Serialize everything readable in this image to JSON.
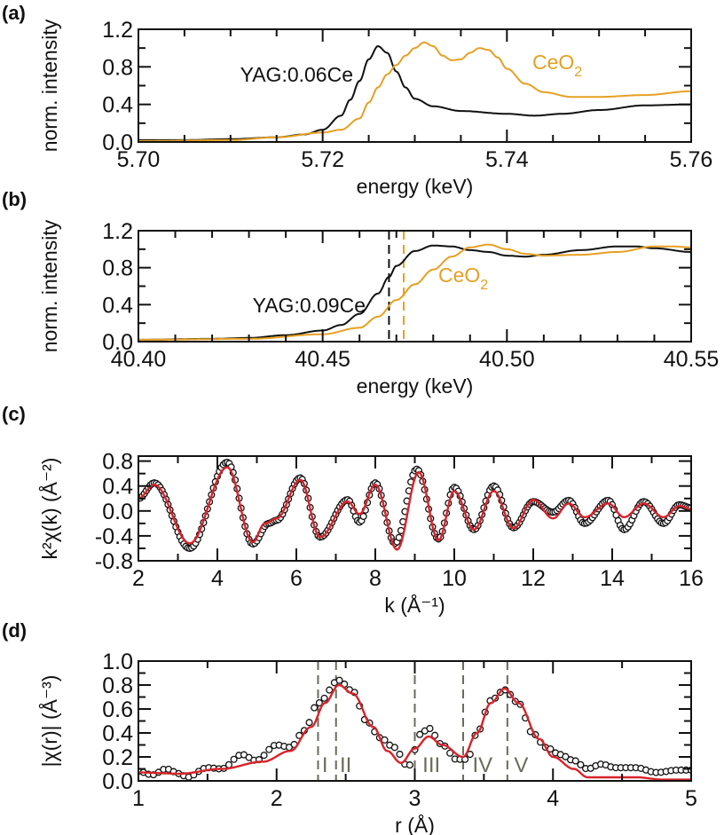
{
  "colors": {
    "yag": "#111111",
    "ceo2": "#e6a024",
    "fit": "#d8232a",
    "data_marker": "#111111",
    "shell_lines": "#6b6b5a"
  },
  "chart_data": [
    {
      "panel_label": "(a)",
      "type": "line",
      "xlabel": "energy (keV)",
      "ylabel": "norm. intensity",
      "xlim": [
        5.7,
        5.76
      ],
      "ylim": [
        0.0,
        1.2
      ],
      "xticks": [
        "5.70",
        "5.72",
        "5.74",
        "5.76"
      ],
      "yticks": [
        "0.0",
        "0.4",
        "0.8",
        "1.2"
      ],
      "grid": false,
      "series": [
        {
          "name": "YAG:0.06Ce",
          "color": "#111111",
          "x": [
            5.7,
            5.705,
            5.71,
            5.715,
            5.718,
            5.72,
            5.722,
            5.723,
            5.724,
            5.725,
            5.726,
            5.727,
            5.728,
            5.729,
            5.73,
            5.732,
            5.735,
            5.74,
            5.743,
            5.746,
            5.75,
            5.755,
            5.76
          ],
          "y": [
            0.02,
            0.02,
            0.03,
            0.05,
            0.08,
            0.13,
            0.28,
            0.45,
            0.65,
            0.88,
            1.02,
            0.95,
            0.75,
            0.58,
            0.46,
            0.38,
            0.33,
            0.3,
            0.28,
            0.3,
            0.34,
            0.39,
            0.4
          ]
        },
        {
          "name": "CeO2",
          "color": "#e6a024",
          "x": [
            5.7,
            5.71,
            5.715,
            5.72,
            5.722,
            5.724,
            5.725,
            5.726,
            5.727,
            5.728,
            5.729,
            5.73,
            5.731,
            5.732,
            5.733,
            5.734,
            5.735,
            5.736,
            5.737,
            5.738,
            5.739,
            5.74,
            5.742,
            5.744,
            5.747,
            5.75,
            5.755,
            5.76
          ],
          "y": [
            0.01,
            0.02,
            0.05,
            0.1,
            0.13,
            0.25,
            0.42,
            0.58,
            0.72,
            0.82,
            0.92,
            1.0,
            1.06,
            1.02,
            0.92,
            0.87,
            0.88,
            0.95,
            1.0,
            0.98,
            0.9,
            0.78,
            0.62,
            0.53,
            0.48,
            0.48,
            0.5,
            0.54
          ]
        }
      ]
    },
    {
      "panel_label": "(b)",
      "type": "line",
      "xlabel": "energy (keV)",
      "ylabel": "norm. intensity",
      "xlim": [
        40.4,
        40.55
      ],
      "ylim": [
        0.0,
        1.2
      ],
      "xticks": [
        "40.40",
        "40.45",
        "40.50",
        "40.55"
      ],
      "yticks": [
        "0.0",
        "0.4",
        "0.8",
        "1.2"
      ],
      "grid": false,
      "vlines": [
        {
          "x": 40.468,
          "color": "#111111"
        },
        {
          "x": 40.472,
          "color": "#e6a024"
        }
      ],
      "series": [
        {
          "name": "YAG:0.09Ce",
          "color": "#111111",
          "x": [
            40.4,
            40.42,
            40.43,
            40.44,
            40.45,
            40.455,
            40.46,
            40.465,
            40.468,
            40.47,
            40.475,
            40.48,
            40.485,
            40.49,
            40.495,
            40.5,
            40.505,
            40.51,
            40.52,
            40.53,
            40.535,
            40.54,
            40.55
          ],
          "y": [
            0.02,
            0.03,
            0.04,
            0.07,
            0.12,
            0.18,
            0.3,
            0.52,
            0.7,
            0.82,
            0.98,
            1.04,
            1.03,
            0.99,
            0.97,
            0.93,
            0.92,
            0.94,
            0.99,
            1.03,
            1.03,
            1.01,
            0.97
          ]
        },
        {
          "name": "CeO2",
          "color": "#e6a024",
          "x": [
            40.4,
            40.43,
            40.45,
            40.46,
            40.465,
            40.47,
            40.475,
            40.48,
            40.485,
            40.49,
            40.495,
            40.5,
            40.505,
            40.51,
            40.52,
            40.53,
            40.54,
            40.545,
            40.55
          ],
          "y": [
            0.02,
            0.03,
            0.08,
            0.15,
            0.27,
            0.45,
            0.62,
            0.78,
            0.92,
            1.02,
            1.05,
            1.0,
            0.95,
            0.93,
            0.94,
            0.97,
            1.03,
            1.03,
            1.02
          ]
        }
      ]
    },
    {
      "panel_label": "(c)",
      "type": "line+scatter",
      "xlabel": "k (Å⁻¹)",
      "ylabel": "k²χ(k) (Å⁻²)",
      "xlim": [
        2,
        16
      ],
      "ylim": [
        -0.8,
        0.88
      ],
      "xticks": [
        "2",
        "4",
        "6",
        "8",
        "10",
        "12",
        "14",
        "16"
      ],
      "yticks": [
        "-0.8",
        "-0.4",
        "0.0",
        "0.4",
        "0.8"
      ],
      "grid": false,
      "series": [
        {
          "role": "data",
          "marker": "open-circle",
          "color": "#111111",
          "x": [
            2.0,
            2.4,
            3.3,
            4.25,
            4.9,
            5.3,
            5.5,
            6.1,
            6.6,
            7.3,
            7.6,
            8.0,
            8.5,
            9.05,
            9.6,
            10.0,
            10.5,
            11.0,
            11.5,
            12.0,
            12.5,
            12.9,
            13.3,
            13.9,
            14.3,
            14.8,
            15.3,
            15.7,
            16.0
          ],
          "y": [
            0.2,
            0.45,
            -0.6,
            0.78,
            -0.53,
            -0.2,
            -0.15,
            0.53,
            -0.42,
            0.18,
            -0.18,
            0.45,
            -0.52,
            0.67,
            -0.45,
            0.38,
            -0.3,
            0.4,
            -0.27,
            0.15,
            -0.02,
            0.17,
            -0.2,
            0.17,
            -0.3,
            0.15,
            -0.2,
            0.1,
            0.05
          ]
        },
        {
          "role": "fit",
          "color": "#d8232a",
          "x": [
            2.0,
            2.4,
            3.3,
            4.25,
            4.9,
            5.2,
            5.5,
            6.1,
            6.6,
            7.3,
            7.6,
            8.0,
            8.55,
            9.1,
            9.6,
            10.0,
            10.5,
            11.0,
            11.5,
            12.0,
            12.5,
            12.9,
            13.3,
            13.9,
            14.3,
            14.8,
            15.3,
            15.7,
            16.0
          ],
          "y": [
            0.2,
            0.42,
            -0.52,
            0.7,
            -0.5,
            -0.2,
            -0.12,
            0.5,
            -0.42,
            0.15,
            -0.05,
            0.42,
            -0.62,
            0.62,
            -0.47,
            0.32,
            -0.3,
            0.32,
            -0.28,
            0.18,
            -0.12,
            0.12,
            -0.1,
            0.12,
            -0.1,
            0.12,
            -0.1,
            0.08,
            0.03
          ]
        }
      ]
    },
    {
      "panel_label": "(d)",
      "type": "line+scatter",
      "xlabel": "r (Å)",
      "ylabel": "|χ(r)| (Å⁻³)",
      "xlim": [
        1,
        5
      ],
      "ylim": [
        0.0,
        1.0
      ],
      "xticks": [
        "1",
        "2",
        "3",
        "4",
        "5"
      ],
      "yticks": [
        "0.0",
        "0.2",
        "0.4",
        "0.6",
        "0.8",
        "1.0"
      ],
      "grid": false,
      "vlines": [
        {
          "x": 2.3,
          "color": "#6b6b5a"
        },
        {
          "x": 2.43,
          "color": "#6b6b5a"
        },
        {
          "x": 3.0,
          "color": "#6b6b5a"
        },
        {
          "x": 3.35,
          "color": "#6b6b5a"
        },
        {
          "x": 3.67,
          "color": "#6b6b5a"
        }
      ],
      "shell_labels": [
        {
          "text": "I",
          "x": 2.35
        },
        {
          "text": "II",
          "x": 2.5
        },
        {
          "text": "III",
          "x": 3.12
        },
        {
          "text": "IV",
          "x": 3.49
        },
        {
          "text": "V",
          "x": 3.77
        }
      ],
      "series": [
        {
          "role": "data",
          "marker": "open-circle",
          "color": "#111111",
          "x": [
            1.0,
            1.1,
            1.2,
            1.3,
            1.35,
            1.5,
            1.6,
            1.75,
            1.85,
            2.0,
            2.1,
            2.2,
            2.3,
            2.45,
            2.55,
            2.65,
            2.75,
            2.85,
            2.95,
            3.05,
            3.1,
            3.2,
            3.3,
            3.38,
            3.45,
            3.55,
            3.65,
            3.75,
            3.85,
            3.95,
            4.05,
            4.15,
            4.25,
            4.35,
            4.45,
            4.6,
            4.75,
            4.9,
            5.0
          ],
          "y": [
            0.08,
            0.05,
            0.1,
            0.06,
            0.03,
            0.11,
            0.1,
            0.22,
            0.17,
            0.3,
            0.28,
            0.42,
            0.65,
            0.84,
            0.75,
            0.5,
            0.36,
            0.28,
            0.12,
            0.4,
            0.44,
            0.3,
            0.18,
            0.18,
            0.4,
            0.67,
            0.76,
            0.65,
            0.4,
            0.28,
            0.22,
            0.17,
            0.1,
            0.14,
            0.11,
            0.11,
            0.07,
            0.09,
            0.09
          ]
        },
        {
          "role": "fit",
          "color": "#d8232a",
          "x": [
            1.0,
            1.3,
            1.6,
            1.9,
            2.1,
            2.25,
            2.35,
            2.45,
            2.55,
            2.7,
            2.8,
            2.9,
            3.0,
            3.1,
            3.2,
            3.35,
            3.45,
            3.55,
            3.65,
            3.75,
            3.9,
            4.0,
            4.15,
            4.25,
            4.4,
            4.6,
            4.8,
            5.0
          ],
          "y": [
            0.07,
            0.06,
            0.1,
            0.16,
            0.25,
            0.45,
            0.65,
            0.8,
            0.73,
            0.45,
            0.25,
            0.15,
            0.27,
            0.37,
            0.3,
            0.2,
            0.4,
            0.65,
            0.77,
            0.65,
            0.35,
            0.2,
            0.1,
            0.03,
            0.03,
            0.03,
            0.01,
            0.01
          ]
        }
      ]
    }
  ],
  "annotations": {
    "a_yag": "YAG:0.06Ce",
    "a_ceo2_main": "CeO",
    "a_ceo2_sub": "2",
    "b_yag": "YAG:0.09Ce",
    "b_ceo2_main": "CeO",
    "b_ceo2_sub": "2"
  }
}
